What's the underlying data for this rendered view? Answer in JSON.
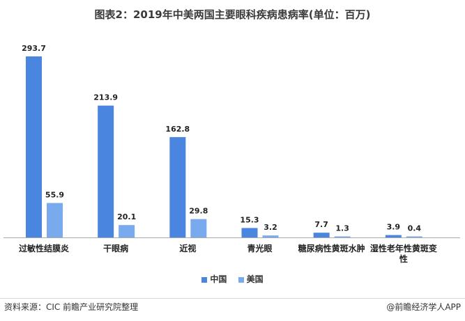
{
  "title": "图表2：2019年中美两国主要眼科疾病患病率(单位：百万)",
  "footer": {
    "source": "资料来源：CIC 前瞻产业研究院整理",
    "credit": "@前瞻经济学人APP"
  },
  "colors": {
    "china": "#4a86e0",
    "usa": "#7aaaee",
    "label": "#222222",
    "axis": "#aaaaaa"
  },
  "chart_data": {
    "type": "bar",
    "title": "图表2：2019年中美两国主要眼科疾病患病率(单位：百万)",
    "categories": [
      "过敏性结膜炎",
      "干眼病",
      "近视",
      "青光眼",
      "糖尿病性黄斑水肿",
      "湿性老年性黄斑变性"
    ],
    "series": [
      {
        "name": "中国",
        "values": [
          293.7,
          213.9,
          162.8,
          15.3,
          7.7,
          3.9
        ]
      },
      {
        "name": "美国",
        "values": [
          55.9,
          20.1,
          29.8,
          3.2,
          1.3,
          0.4
        ]
      }
    ],
    "value_labels": [
      [
        "293.7",
        "213.9",
        "162.8",
        "15.3",
        "7.7",
        "3.9"
      ],
      [
        "55.9",
        "20.1",
        "29.8",
        "3.2",
        "1.3",
        "0.4"
      ]
    ],
    "ylim": [
      0,
      293.7
    ],
    "grid": false,
    "legend": "bottom-center",
    "xlabel": "",
    "ylabel": ""
  }
}
